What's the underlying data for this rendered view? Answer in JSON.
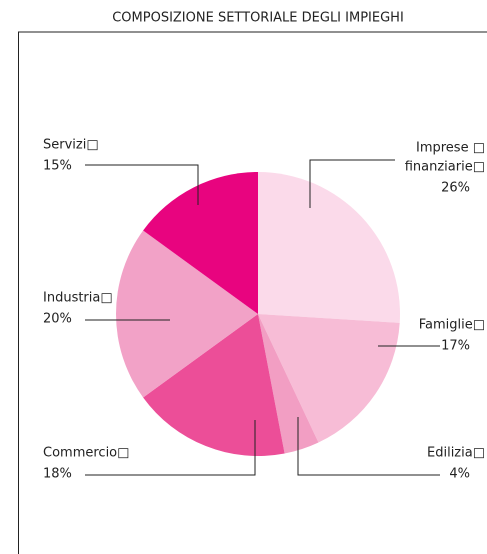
{
  "chart_data": {
    "type": "pie",
    "title": "COMPOSIZIONE SETTORIALE DEGLI IMPIEGHI",
    "categories": [
      [
        "Imprese □",
        "finanziarie□"
      ],
      [
        "Famiglie□"
      ],
      [
        "Edilizia□"
      ],
      [
        "Commercio□"
      ],
      [
        "Industria□"
      ],
      [
        "Servizi□"
      ]
    ],
    "values": [
      26,
      17,
      4,
      18,
      20,
      15
    ],
    "value_labels": [
      "26%",
      "17%",
      "4%",
      "18%",
      "20%",
      "15%"
    ],
    "colors": [
      "#fbdaea",
      "#f7bcd6",
      "#f29ec3",
      "#ec4e98",
      "#f2a2c7",
      "#e8047f"
    ]
  }
}
